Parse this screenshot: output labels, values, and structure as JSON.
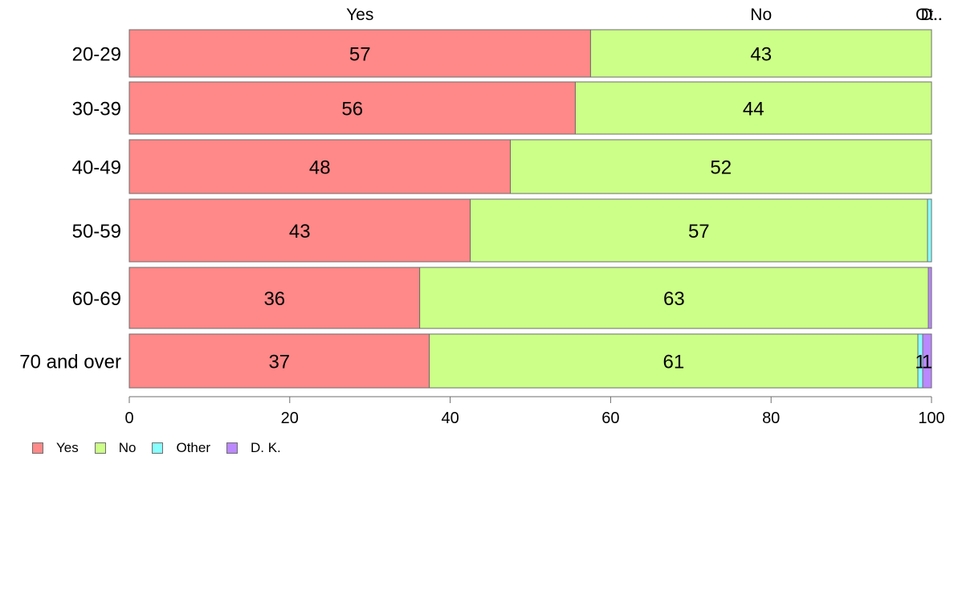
{
  "chart_data": {
    "type": "bar",
    "orientation": "horizontal",
    "stacked": true,
    "categories": [
      "20-29",
      "30-39",
      "40-49",
      "50-59",
      "60-69",
      "70 and over"
    ],
    "series": [
      {
        "name": "Yes",
        "color": "#ff8888",
        "values": [
          57.5,
          55.6,
          47.5,
          42.5,
          36.2,
          37.4
        ],
        "labels": [
          "57",
          "56",
          "48",
          "43",
          "36",
          "37"
        ]
      },
      {
        "name": "No",
        "color": "#ccff88",
        "values": [
          42.5,
          44.4,
          52.5,
          57.0,
          63.4,
          60.9
        ],
        "labels": [
          "43",
          "44",
          "52",
          "57",
          "63",
          "61"
        ]
      },
      {
        "name": "Other",
        "color": "#88ffff",
        "values": [
          0,
          0,
          0,
          0.5,
          0,
          0.6
        ],
        "labels": [
          "",
          "",
          "",
          "",
          "",
          "1"
        ]
      },
      {
        "name": "D. K.",
        "color": "#bb88ff",
        "values": [
          0,
          0,
          0,
          0,
          0.4,
          1.1
        ],
        "labels": [
          "",
          "",
          "",
          "",
          "",
          "1"
        ]
      }
    ],
    "top_labels": [
      "Yes",
      "No",
      "Ot..",
      "D.."
    ],
    "xlim": [
      0,
      100
    ],
    "xticks": [
      "0",
      "20",
      "40",
      "60",
      "80",
      "100"
    ],
    "legend": [
      "Yes",
      "No",
      "Other",
      "D. K."
    ],
    "legend_position": "bottom-left",
    "grid": false
  }
}
